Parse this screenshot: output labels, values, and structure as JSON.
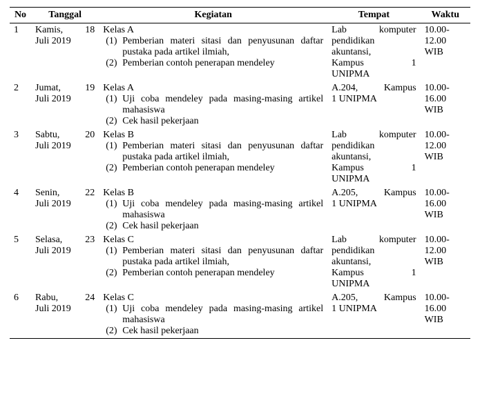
{
  "table": {
    "headers": {
      "no": "No",
      "tanggal": "Tanggal",
      "kegiatan": "Kegiatan",
      "tempat": "Tempat",
      "waktu": "Waktu"
    },
    "rows": [
      {
        "no": "1",
        "tanggal_l1": "Kamis, 18",
        "tanggal_l2": "Juli 2019",
        "kelas": "Kelas A",
        "items": [
          {
            "n": "(1)",
            "t": "Pemberian materi sitasi dan penyusunan daftar pustaka pada artikel ilmiah,"
          },
          {
            "n": "(2)",
            "t": "Pemberian contoh penerapan mendeley"
          }
        ],
        "tempat_lines": [
          "Lab komputer",
          "pendidikan",
          "akuntansi,",
          "Kampus 1",
          "UNIPMA"
        ],
        "waktu_l1": "10.00-",
        "waktu_l2": "12.00",
        "waktu_l3": "WIB"
      },
      {
        "no": "2",
        "tanggal_l1": "Jumat, 19",
        "tanggal_l2": "Juli 2019",
        "kelas": "Kelas A",
        "items": [
          {
            "n": "(1)",
            "t": "Uji coba mendeley pada masing-masing artikel mahasiswa"
          },
          {
            "n": "(2)",
            "t": "Cek hasil pekerjaan"
          }
        ],
        "tempat_lines": [
          "A.204, Kampus",
          "1 UNIPMA"
        ],
        "waktu_l1": "10.00-",
        "waktu_l2": "16.00",
        "waktu_l3": "WIB"
      },
      {
        "no": "3",
        "tanggal_l1": "Sabtu, 20",
        "tanggal_l2": "Juli 2019",
        "kelas": "Kelas B",
        "items": [
          {
            "n": "(1)",
            "t": "Pemberian materi sitasi dan penyusunan daftar pustaka pada artikel ilmiah,"
          },
          {
            "n": "(2)",
            "t": "Pemberian contoh penerapan mendeley"
          }
        ],
        "tempat_lines": [
          "Lab komputer",
          "pendidikan",
          "akuntansi,",
          "Kampus 1",
          "UNIPMA"
        ],
        "waktu_l1": "10.00-",
        "waktu_l2": "12.00",
        "waktu_l3": "WIB"
      },
      {
        "no": "4",
        "tanggal_l1": "Senin, 22",
        "tanggal_l2": "Juli 2019",
        "kelas": "Kelas B",
        "items": [
          {
            "n": "(1)",
            "t": "Uji coba mendeley pada masing-masing artikel mahasiswa"
          },
          {
            "n": "(2)",
            "t": "Cek hasil pekerjaan"
          }
        ],
        "tempat_lines": [
          "A.205, Kampus",
          "1 UNIPMA"
        ],
        "waktu_l1": "10.00-",
        "waktu_l2": "16.00",
        "waktu_l3": "WIB"
      },
      {
        "no": "5",
        "tanggal_l1": "Selasa, 23",
        "tanggal_l2": "Juli 2019",
        "kelas": "Kelas C",
        "items": [
          {
            "n": "(1)",
            "t": "Pemberian materi sitasi dan penyusunan daftar pustaka pada artikel ilmiah,"
          },
          {
            "n": "(2)",
            "t": "Pemberian contoh penerapan mendeley"
          }
        ],
        "tempat_lines": [
          "Lab komputer",
          "pendidikan",
          "akuntansi,",
          "Kampus 1",
          "UNIPMA"
        ],
        "waktu_l1": "10.00-",
        "waktu_l2": "12.00",
        "waktu_l3": "WIB"
      },
      {
        "no": "6",
        "tanggal_l1": "Rabu, 24",
        "tanggal_l2": "Juli 2019",
        "kelas": "Kelas C",
        "items": [
          {
            "n": "(1)",
            "t": "Uji coba mendeley pada masing-masing artikel mahasiswa"
          },
          {
            "n": "(2)",
            "t": "Cek hasil pekerjaan"
          }
        ],
        "tempat_lines": [
          "A.205, Kampus",
          "1 UNIPMA"
        ],
        "waktu_l1": "10.00-",
        "waktu_l2": "16.00",
        "waktu_l3": "WIB"
      }
    ]
  }
}
